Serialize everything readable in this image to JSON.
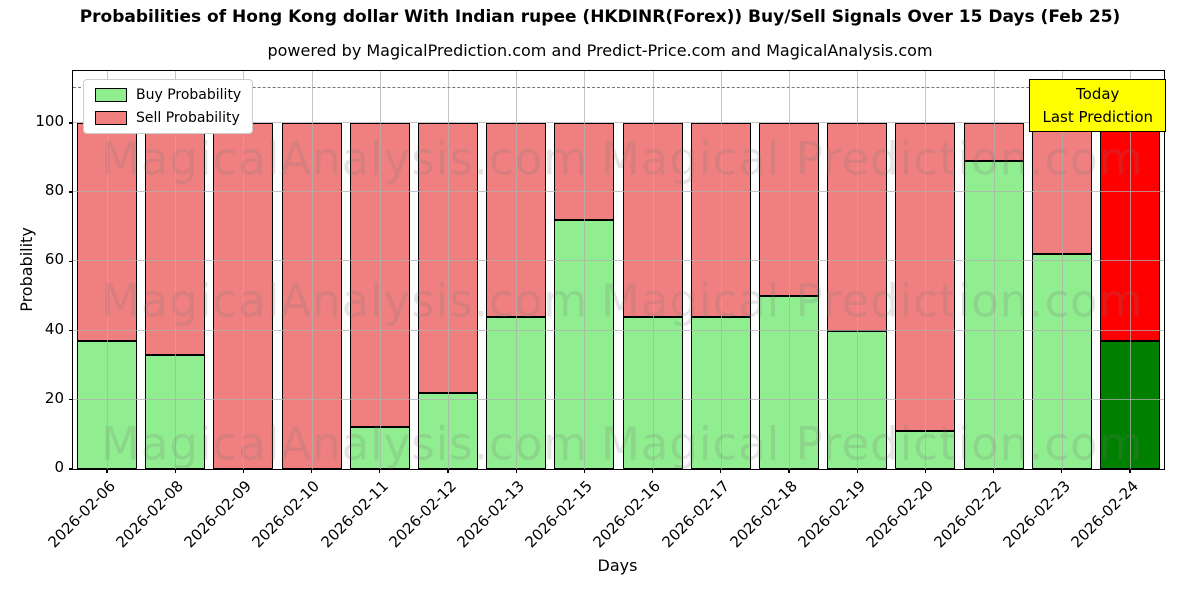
{
  "figure": {
    "title": "Probabilities of Hong Kong dollar With Indian rupee (HKDINR(Forex)) Buy/Sell Signals Over 15 Days (Feb 25)",
    "subtitle": "powered by MagicalPrediction.com and Predict-Price.com and MagicalAnalysis.com"
  },
  "legend": {
    "items": [
      {
        "label": "Buy Probability",
        "color": "#90EE90"
      },
      {
        "label": "Sell Probability",
        "color": "#F08080"
      }
    ]
  },
  "annotation": {
    "line1": "Today",
    "line2": "Last Prediction",
    "bg": "#FFFF00"
  },
  "watermark": {
    "left": "MagicalAnalysis.com",
    "right": "Magical Prediction.com"
  },
  "chart_data": {
    "type": "bar",
    "stacked": true,
    "title": "Probabilities of Hong Kong dollar With Indian rupee (HKDINR(Forex)) Buy/Sell Signals Over 15 Days (Feb 25)",
    "xlabel": "Days",
    "ylabel": "Probability",
    "categories": [
      "2026-02-06",
      "2026-02-08",
      "2026-02-09",
      "2026-02-10",
      "2026-02-11",
      "2026-02-12",
      "2026-02-13",
      "2026-02-15",
      "2026-02-16",
      "2026-02-17",
      "2026-02-18",
      "2026-02-19",
      "2026-02-20",
      "2026-02-22",
      "2026-02-23",
      "2026-02-24"
    ],
    "series": [
      {
        "name": "Buy Probability",
        "color": "#90EE90",
        "today_color": "#008000",
        "values": [
          37,
          33,
          0,
          0,
          12,
          22,
          44,
          72,
          44,
          44,
          50,
          40,
          11,
          89,
          62,
          37
        ]
      },
      {
        "name": "Sell Probability",
        "color": "#F08080",
        "today_color": "#FF0000",
        "values": [
          63,
          67,
          100,
          100,
          88,
          78,
          56,
          28,
          56,
          56,
          50,
          60,
          89,
          11,
          38,
          63
        ]
      }
    ],
    "yticks": [
      0,
      20,
      40,
      60,
      80,
      100
    ],
    "ylim": [
      0,
      115
    ],
    "dashed_line_y": 110,
    "grid": true,
    "legend_position": "upper left",
    "today_category": "2026-02-24"
  }
}
